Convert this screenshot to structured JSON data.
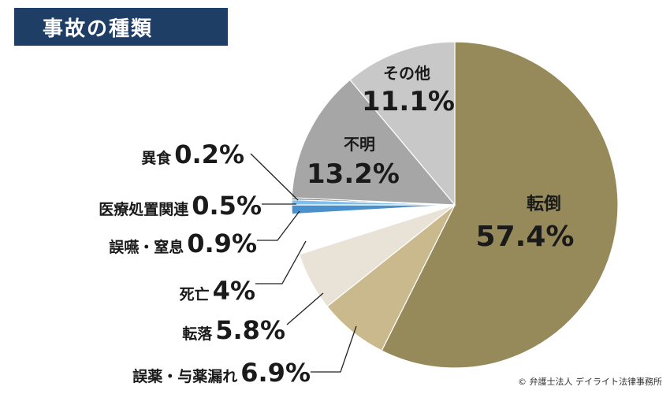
{
  "title": "事故の種類",
  "credit": "© 弁護士法人 デイライト法律事務所",
  "chart_data": {
    "type": "pie",
    "title": "事故の種類",
    "start": "12 o'clock, clockwise",
    "slices": [
      {
        "label": "転倒",
        "value": 57.4,
        "display": "57.4%",
        "color": "#978a5a"
      },
      {
        "label": "誤薬・与薬漏れ",
        "value": 6.9,
        "display": "6.9%",
        "color": "#c9b98c"
      },
      {
        "label": "転落",
        "value": 5.8,
        "display": "5.8%",
        "color": "#e8e3d6"
      },
      {
        "label": "死亡",
        "value": 4,
        "display": "4%",
        "color": "#ffffff"
      },
      {
        "label": "誤嚥・窒息",
        "value": 0.9,
        "display": "0.9%",
        "color": "#4a90cc"
      },
      {
        "label": "医療処置関連",
        "value": 0.5,
        "display": "0.5%",
        "color": "#7fbfee"
      },
      {
        "label": "異食",
        "value": 0.2,
        "display": "0.2%",
        "color": "#6f6f6f"
      },
      {
        "label": "不明",
        "value": 13.2,
        "display": "13.2%",
        "color": "#a6a6a6"
      },
      {
        "label": "その他",
        "value": 11.1,
        "display": "11.1%",
        "color": "#c8c8c8"
      }
    ]
  }
}
